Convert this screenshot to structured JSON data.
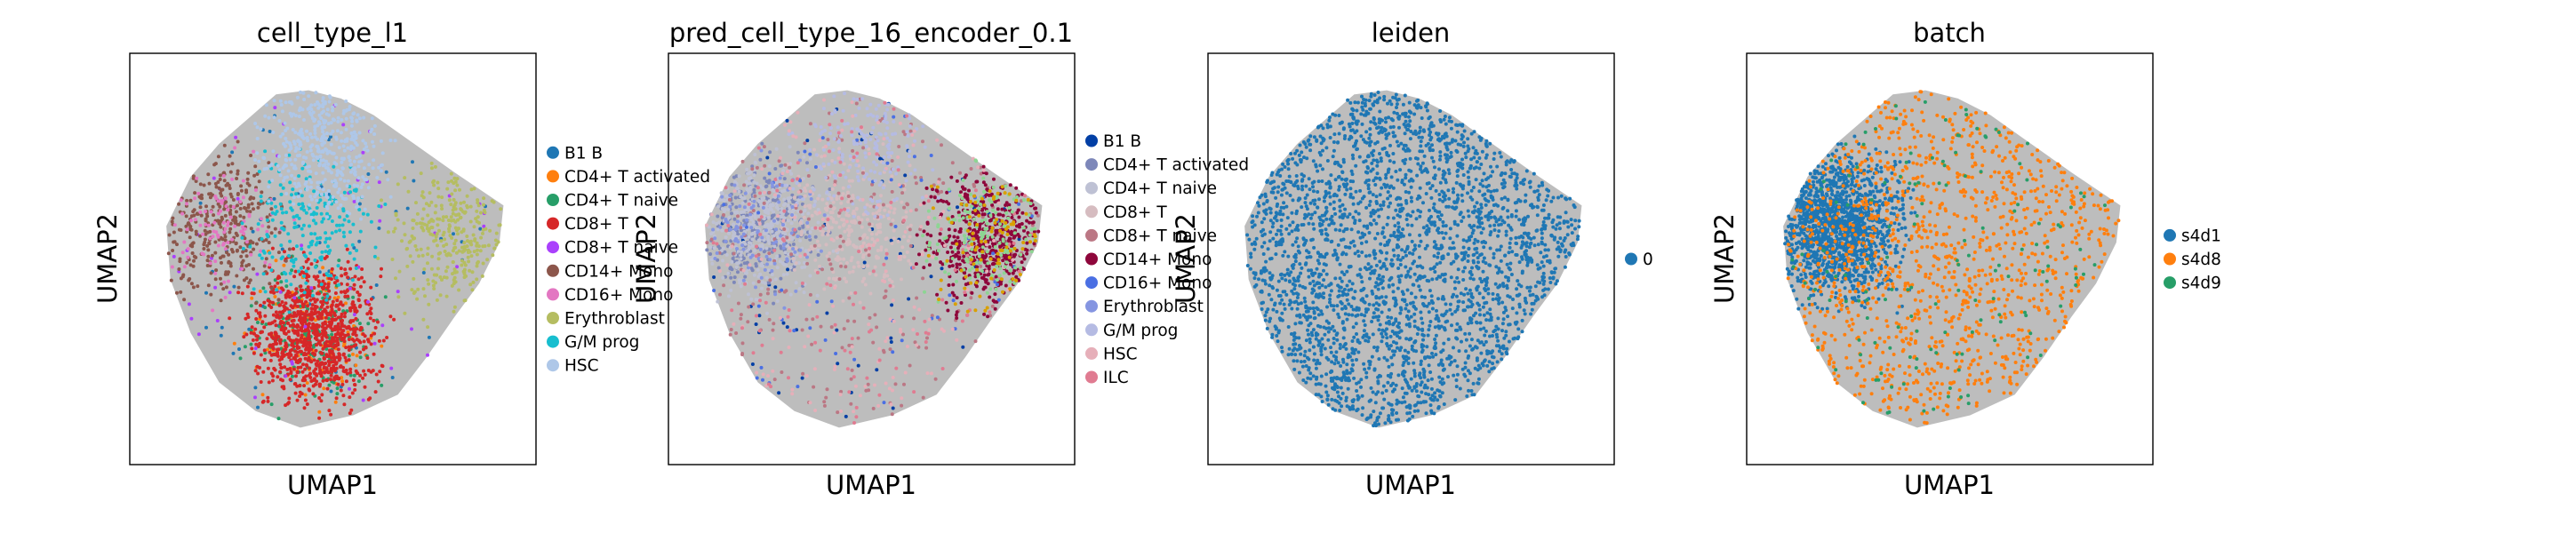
{
  "chart_data": [
    {
      "type": "scatter",
      "title": "cell_type_l1",
      "xlabel": "UMAP1",
      "ylabel": "UMAP2",
      "grid": false,
      "legend_position": "right",
      "point_color": "#bdbdbd",
      "series": [
        {
          "name": "B1 B",
          "color": "#1f77b4",
          "weight": 2,
          "region": "any"
        },
        {
          "name": "CD4+ T activated",
          "color": "#ff7f0e",
          "weight": 4,
          "region": "bottom"
        },
        {
          "name": "CD4+ T naive",
          "color": "#279e68",
          "weight": 6,
          "region": "bottom"
        },
        {
          "name": "CD8+ T",
          "color": "#d62728",
          "weight": 30,
          "region": "bottom"
        },
        {
          "name": "CD8+ T naive",
          "color": "#aa40fc",
          "weight": 2,
          "region": "any"
        },
        {
          "name": "CD14+ Mono",
          "color": "#8c564b",
          "weight": 11,
          "region": "left"
        },
        {
          "name": "CD16+ Mono",
          "color": "#e377c2",
          "weight": 3,
          "region": "left"
        },
        {
          "name": "Erythroblast",
          "color": "#b5bd61",
          "weight": 10,
          "region": "right"
        },
        {
          "name": "G/M prog",
          "color": "#17becf",
          "weight": 7,
          "region": "center"
        },
        {
          "name": "HSC",
          "color": "#aec7e8",
          "weight": 14,
          "region": "top"
        }
      ]
    },
    {
      "type": "scatter",
      "title": "pred_cell_type_16_encoder_0.1",
      "xlabel": "UMAP1",
      "ylabel": "UMAP2",
      "grid": false,
      "legend_position": "right",
      "point_color": "#bdbdbd",
      "series": [
        {
          "name": "B1 B",
          "color": "#023fa5",
          "weight": 2,
          "region": "any"
        },
        {
          "name": "CD4+ T activated",
          "color": "#7d87b9",
          "weight": 9,
          "region": "left"
        },
        {
          "name": "CD4+ T naive",
          "color": "#bec1d4",
          "weight": 14,
          "region": "left"
        },
        {
          "name": "CD8+ T",
          "color": "#d6bcc0",
          "weight": 10,
          "region": "center"
        },
        {
          "name": "CD8+ T naive",
          "color": "#bb7784",
          "weight": 8,
          "region": "any"
        },
        {
          "name": "CD14+ Mono",
          "color": "#8e063b",
          "weight": 16,
          "region": "right"
        },
        {
          "name": "CD16+ Mono",
          "color": "#4a6fe3",
          "weight": 2,
          "region": "any"
        },
        {
          "name": "Erythroblast",
          "color": "#8595e1",
          "weight": 3,
          "region": "left"
        },
        {
          "name": "G/M prog",
          "color": "#b5bbe3",
          "weight": 6,
          "region": "top"
        },
        {
          "name": "HSC",
          "color": "#e6afb9",
          "weight": 5,
          "region": "any"
        },
        {
          "name": "ILC",
          "color": "#e07b91",
          "weight": 4,
          "region": "any"
        },
        {
          "name": "",
          "color": "#8dd593",
          "weight": 5,
          "region": "right"
        },
        {
          "name": "",
          "color": "#d9a000",
          "weight": 3,
          "region": "right"
        }
      ]
    },
    {
      "type": "scatter",
      "title": "leiden",
      "xlabel": "UMAP1",
      "ylabel": "UMAP2",
      "grid": false,
      "legend_position": "right",
      "point_color": "#bdbdbd",
      "series": [
        {
          "name": "0",
          "color": "#1f77b4",
          "weight": 1,
          "region": "any"
        }
      ]
    },
    {
      "type": "scatter",
      "title": "batch",
      "xlabel": "UMAP1",
      "ylabel": "UMAP2",
      "grid": false,
      "legend_position": "right",
      "point_color": "#bdbdbd",
      "series": [
        {
          "name": "s4d1",
          "color": "#1f77b4",
          "weight": 10,
          "region": "left"
        },
        {
          "name": "s4d8",
          "color": "#ff7f0e",
          "weight": 8,
          "region": "any"
        },
        {
          "name": "s4d9",
          "color": "#279e68",
          "weight": 1,
          "region": "any"
        }
      ]
    }
  ]
}
